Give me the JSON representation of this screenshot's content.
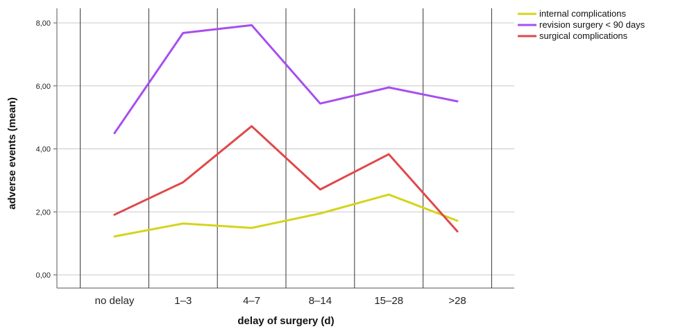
{
  "chart_data": {
    "type": "line",
    "title": "",
    "xlabel": "delay of surgery (d)",
    "ylabel": "adverse events (mean)",
    "categories": [
      "no delay",
      "1–3",
      "4–7",
      "8–14",
      "15–28",
      ">28"
    ],
    "ylim": [
      0,
      8.4
    ],
    "yticks": [
      0,
      2,
      4,
      6,
      8
    ],
    "ytick_labels": [
      "0,00",
      "2,00",
      "4,00",
      "6,00",
      "8,00"
    ],
    "grid": {
      "horizontal": true,
      "vertical": true
    },
    "legend_position": "top-right",
    "series": [
      {
        "name": "internal complications",
        "color": "#d4d41c",
        "values": [
          1.22,
          1.63,
          1.49,
          1.95,
          2.55,
          1.72
        ]
      },
      {
        "name": "revision surgery < 90 days",
        "color": "#a64ef0",
        "values": [
          4.5,
          7.68,
          7.93,
          5.44,
          5.95,
          5.51
        ]
      },
      {
        "name": "surgical complications",
        "color": "#e0484a",
        "values": [
          1.91,
          2.94,
          4.72,
          2.71,
          3.83,
          1.38
        ]
      }
    ]
  }
}
